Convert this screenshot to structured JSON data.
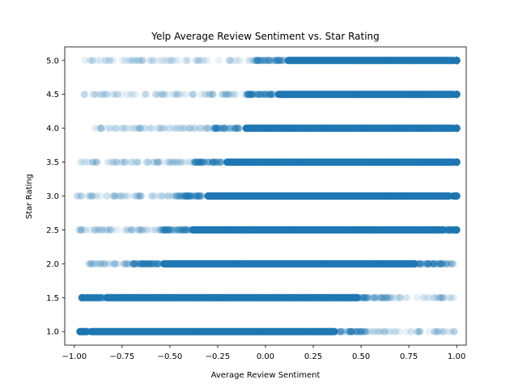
{
  "chart_data": {
    "type": "scatter",
    "title": "Yelp Average Review Sentiment vs. Star Rating",
    "xlabel": "Average Review Sentiment",
    "ylabel": "Star Rating",
    "xlim": [
      -1.05,
      1.05
    ],
    "ylim": [
      0.8,
      5.2
    ],
    "xticks": [
      -1.0,
      -0.75,
      -0.5,
      -0.25,
      0.0,
      0.25,
      0.5,
      0.75,
      1.0
    ],
    "xtick_labels": [
      "−1.00",
      "−0.75",
      "−0.50",
      "−0.25",
      "0.00",
      "0.25",
      "0.50",
      "0.75",
      "1.00"
    ],
    "yticks": [
      1.0,
      1.5,
      2.0,
      2.5,
      3.0,
      3.5,
      4.0,
      4.5,
      5.0
    ],
    "ytick_labels": [
      "1.0",
      "1.5",
      "2.0",
      "2.5",
      "3.0",
      "3.5",
      "4.0",
      "4.5",
      "5.0"
    ],
    "grid": false,
    "marker_color": "#1f77b4",
    "marker_alpha": 0.1,
    "rows": [
      {
        "star": 1.0,
        "x_min": -0.97,
        "x_max": 0.99,
        "dense_from": -0.93,
        "dense_to": 0.38
      },
      {
        "star": 1.5,
        "x_min": -0.96,
        "x_max": 0.99,
        "dense_from": -0.85,
        "dense_to": 0.5
      },
      {
        "star": 2.0,
        "x_min": -0.93,
        "x_max": 0.99,
        "dense_from": -0.55,
        "dense_to": 0.8
      },
      {
        "star": 2.5,
        "x_min": -0.98,
        "x_max": 1.0,
        "dense_from": -0.4,
        "dense_to": 0.95
      },
      {
        "star": 3.0,
        "x_min": -0.99,
        "x_max": 1.0,
        "dense_from": -0.32,
        "dense_to": 0.98
      },
      {
        "star": 3.5,
        "x_min": -0.97,
        "x_max": 1.0,
        "dense_from": -0.22,
        "dense_to": 1.0
      },
      {
        "star": 4.0,
        "x_min": -0.97,
        "x_max": 1.0,
        "dense_from": -0.12,
        "dense_to": 1.0
      },
      {
        "star": 4.5,
        "x_min": -0.96,
        "x_max": 1.0,
        "dense_from": 0.05,
        "dense_to": 1.0
      },
      {
        "star": 5.0,
        "x_min": -0.95,
        "x_max": 1.0,
        "dense_from": 0.1,
        "dense_to": 1.0
      }
    ]
  }
}
